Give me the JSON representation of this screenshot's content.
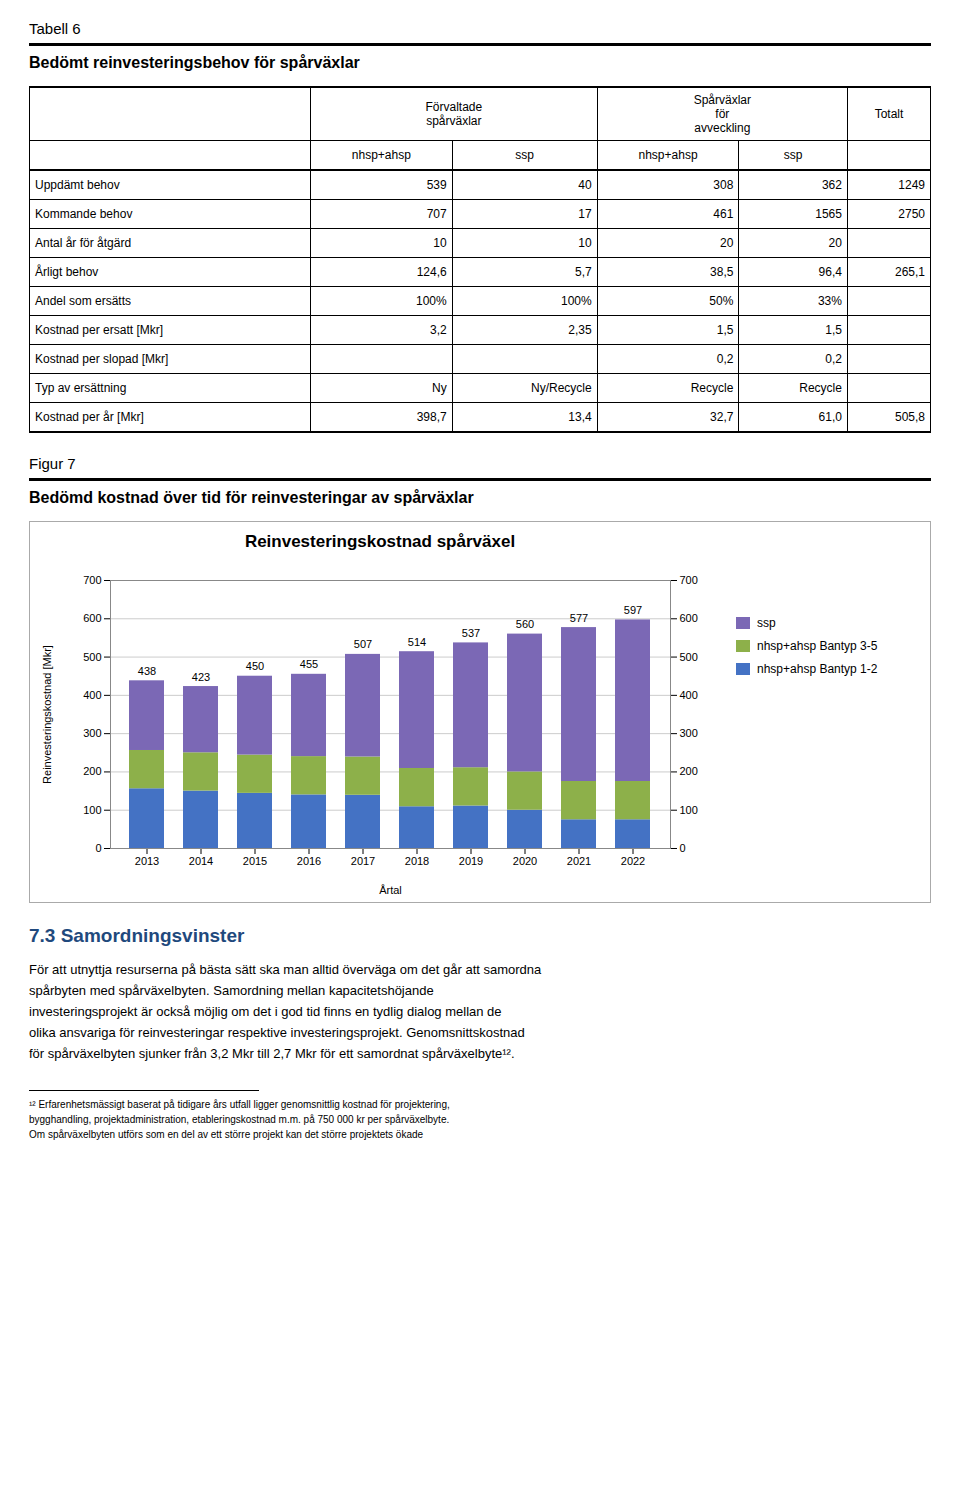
{
  "tabell_title": "Tabell 6",
  "tabell_subtitle": "Bedömt reinvesteringsbehov för spårväxlar",
  "table": {
    "header": [
      "Förvaltade\nspårväxlar",
      "Spårväxlar\nför\navveckling",
      "Totalt"
    ],
    "subheader": [
      "nhsp+ahsp",
      "ssp",
      "nhsp+ahsp",
      "ssp",
      null
    ],
    "rows": [
      [
        "Uppdämt behov",
        "539",
        "40",
        "308",
        "362",
        "1249"
      ],
      [
        "Kommande behov",
        "707",
        "17",
        "461",
        "1565",
        "2750"
      ],
      [
        "Antal år för åtgärd",
        "10",
        "10",
        "20",
        "20",
        null
      ],
      [
        "Årligt behov",
        "124,6",
        "5,7",
        "38,5",
        "96,4",
        "265,1"
      ],
      [
        "Andel som ersätts",
        "100%",
        "100%",
        "50%",
        "33%",
        null
      ],
      [
        "Kostnad per ersatt [Mkr]",
        "3,2",
        "2,35",
        "1,5",
        "1,5",
        null
      ],
      [
        "Kostnad per slopad [Mkr]",
        null,
        null,
        "0,2",
        "0,2",
        null
      ],
      [
        "Typ av ersättning",
        "Ny",
        "Ny/Recycle",
        "Recycle",
        "Recycle",
        null
      ],
      [
        "Kostnad per år [Mkr]",
        "398,7",
        "13,4",
        "32,7",
        "61,0",
        "505,8"
      ]
    ]
  },
  "figur_title": "Figur 7",
  "figur_subtitle": "Bedömd kostnad över tid för reinvesteringar av spårväxlar",
  "chart_data": {
    "type": "bar",
    "stacked": true,
    "title": "Reinvesteringskostnad spårväxel",
    "xlabel": "Årtal",
    "ylabel": "Reinvesteringskostnad [Mkr]",
    "categories": [
      2013,
      2014,
      2015,
      2016,
      2017,
      2018,
      2019,
      2020,
      2021,
      2022
    ],
    "series": [
      {
        "name": "nhsp+ahsp Bantyp 1-2",
        "color": "#4472C4",
        "values": [
          156,
          150,
          144,
          140,
          139,
          109,
          111,
          100,
          75,
          75
        ]
      },
      {
        "name": "nhsp+ahsp Bantyp 3-5",
        "color": "#8DB04A",
        "values": [
          100,
          100,
          100,
          100,
          100,
          100,
          100,
          100,
          100,
          100
        ]
      },
      {
        "name": "ssp",
        "color": "#7B68B5",
        "values": [
          182,
          173,
          206,
          215,
          268,
          305,
          326,
          360,
          402,
          422
        ]
      }
    ],
    "totals": [
      438,
      423,
      450,
      455,
      507,
      514,
      537,
      560,
      577,
      597
    ],
    "ylim": [
      0,
      700
    ],
    "yticks": [
      0,
      100,
      200,
      300,
      400,
      500,
      600,
      700
    ],
    "y2lim": [
      0,
      700
    ],
    "y2ticks": [
      0,
      100,
      200,
      300,
      400,
      500,
      600,
      700
    ],
    "grid": true,
    "legend": "right"
  },
  "section_title": "7.3  Samordningsvinster",
  "body_text": [
    "För att utnyttja resurserna på bästa sätt ska man alltid överväga om det går att samordna",
    "spårbyten med spårväxelbyten. Samordning mellan kapacitetshöjande",
    "investeringsprojekt är också möjlig om det i god tid finns en tydlig dialog mellan de",
    "olika ansvariga för reinvesteringar respektive investeringsprojekt. Genomsnittskostnad",
    "för spårväxelbyten sjunker från 3,2 Mkr till 2,7 Mkr för ett samordnat spårväxelbyte¹²."
  ],
  "footnotes": [
    "¹² Erfarenhetsmässigt baserat på tidigare års utfall ligger genomsnittlig kostnad för projektering,",
    "bygghandling, projektadministration, etableringskostnad m.m. på 750 000 kr per spårväxelbyte.",
    "Om spårväxelbyten utförs som en del av ett större projekt kan det större projektets ökade"
  ]
}
